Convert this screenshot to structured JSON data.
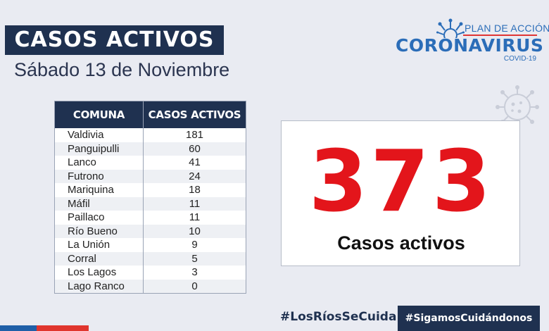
{
  "header": {
    "title": "CASOS ACTIVOS",
    "date": "Sábado 13 de Noviembre"
  },
  "logo": {
    "plan": "PLAN DE ACCIÓN",
    "name": "CORONAVIRUS",
    "sub": "COVID-19",
    "primary_color": "#2b6db8",
    "line_color": "#e03535"
  },
  "table": {
    "headers": [
      "COMUNA",
      "CASOS ACTIVOS"
    ],
    "rows": [
      {
        "comuna": "Valdivia",
        "casos": "181"
      },
      {
        "comuna": "Panguipulli",
        "casos": "60"
      },
      {
        "comuna": "Lanco",
        "casos": "41"
      },
      {
        "comuna": "Futrono",
        "casos": "24"
      },
      {
        "comuna": "Mariquina",
        "casos": "18"
      },
      {
        "comuna": "Máfil",
        "casos": "11"
      },
      {
        "comuna": "Paillaco",
        "casos": "11"
      },
      {
        "comuna": "Río Bueno",
        "casos": "10"
      },
      {
        "comuna": "La Unión",
        "casos": "9"
      },
      {
        "comuna": "Corral",
        "casos": "5"
      },
      {
        "comuna": "Los Lagos",
        "casos": "3"
      },
      {
        "comuna": "Lago Ranco",
        "casos": "0"
      }
    ]
  },
  "total": {
    "value": "373",
    "label": "Casos activos",
    "color": "#e3151b"
  },
  "footer": {
    "hashtag1": "#LosRíosSeCuida",
    "hashtag2": "#SigamosCuidándonos"
  },
  "colors": {
    "navy": "#1f3150",
    "background": "#e9ebf2"
  },
  "icons": [
    "coronavirus-logo-icon",
    "virus-decoration-icon"
  ]
}
